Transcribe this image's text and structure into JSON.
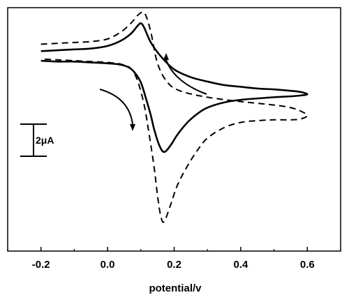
{
  "chart_data": {
    "type": "line",
    "title": "",
    "xlabel": "potential/v",
    "ylabel": "",
    "xlim": [
      -0.3,
      0.7
    ],
    "ylim": [
      -9.0,
      5.0
    ],
    "xticks": [
      -0.2,
      0.0,
      0.2,
      0.4,
      0.6
    ],
    "xtick_labels": [
      "-0.2",
      "0.0",
      "0.2",
      "0.4",
      "0.6"
    ],
    "grid": false,
    "legend": "none",
    "scale_bar": {
      "label": "2μA",
      "value_uA": 2
    },
    "series": [
      {
        "style": "solid",
        "color": "#000000",
        "x": [
          -0.2,
          -0.15,
          -0.1,
          -0.05,
          0.0,
          0.04,
          0.07,
          0.09,
          0.1,
          0.11,
          0.13,
          0.16,
          0.2,
          0.25,
          0.3,
          0.35,
          0.4,
          0.45,
          0.5,
          0.55,
          0.58,
          0.6,
          0.58,
          0.55,
          0.5,
          0.45,
          0.4,
          0.35,
          0.3,
          0.27,
          0.24,
          0.21,
          0.19,
          0.17,
          0.155,
          0.14,
          0.13,
          0.115,
          0.1,
          0.08,
          0.06,
          0.03,
          0.0,
          -0.05,
          -0.1,
          -0.15,
          -0.2
        ],
        "y": [
          2.5,
          2.55,
          2.6,
          2.65,
          2.8,
          3.1,
          3.5,
          3.95,
          4.1,
          3.85,
          3.0,
          2.2,
          1.45,
          1.0,
          0.75,
          0.55,
          0.45,
          0.35,
          0.3,
          0.22,
          0.15,
          0.02,
          -0.05,
          -0.1,
          -0.15,
          -0.22,
          -0.3,
          -0.45,
          -0.75,
          -1.1,
          -1.6,
          -2.3,
          -2.9,
          -3.3,
          -2.9,
          -2.0,
          -1.2,
          -0.2,
          0.7,
          1.3,
          1.6,
          1.75,
          1.8,
          1.85,
          1.9,
          1.9,
          1.95
        ]
      },
      {
        "style": "dashed",
        "color": "#000000",
        "x": [
          -0.2,
          -0.15,
          -0.1,
          -0.05,
          0.0,
          0.04,
          0.07,
          0.09,
          0.105,
          0.115,
          0.13,
          0.15,
          0.18,
          0.22,
          0.3,
          0.4,
          0.5,
          0.55,
          0.58,
          0.6,
          0.58,
          0.55,
          0.5,
          0.45,
          0.4,
          0.35,
          0.3,
          0.27,
          0.24,
          0.21,
          0.19,
          0.17,
          0.16,
          0.15,
          0.14,
          0.125,
          0.11,
          0.09,
          0.07,
          0.04,
          0.0,
          -0.05,
          -0.1,
          -0.15,
          -0.2
        ],
        "y": [
          2.9,
          2.95,
          3.0,
          3.05,
          3.2,
          3.6,
          4.1,
          4.55,
          4.75,
          4.55,
          3.6,
          1.8,
          0.7,
          0.2,
          -0.15,
          -0.4,
          -0.6,
          -0.75,
          -0.95,
          -1.2,
          -1.4,
          -1.45,
          -1.45,
          -1.5,
          -1.6,
          -1.9,
          -2.5,
          -3.2,
          -4.1,
          -5.2,
          -6.3,
          -7.3,
          -7.0,
          -5.8,
          -4.2,
          -2.3,
          -0.6,
          0.8,
          1.5,
          1.75,
          1.85,
          1.9,
          1.95,
          2.0,
          2.05
        ]
      }
    ],
    "annotations": [
      {
        "kind": "arrow",
        "direction": "up",
        "near_x": 0.19
      },
      {
        "kind": "arrow",
        "direction": "down",
        "near_x": 0.08
      }
    ]
  }
}
